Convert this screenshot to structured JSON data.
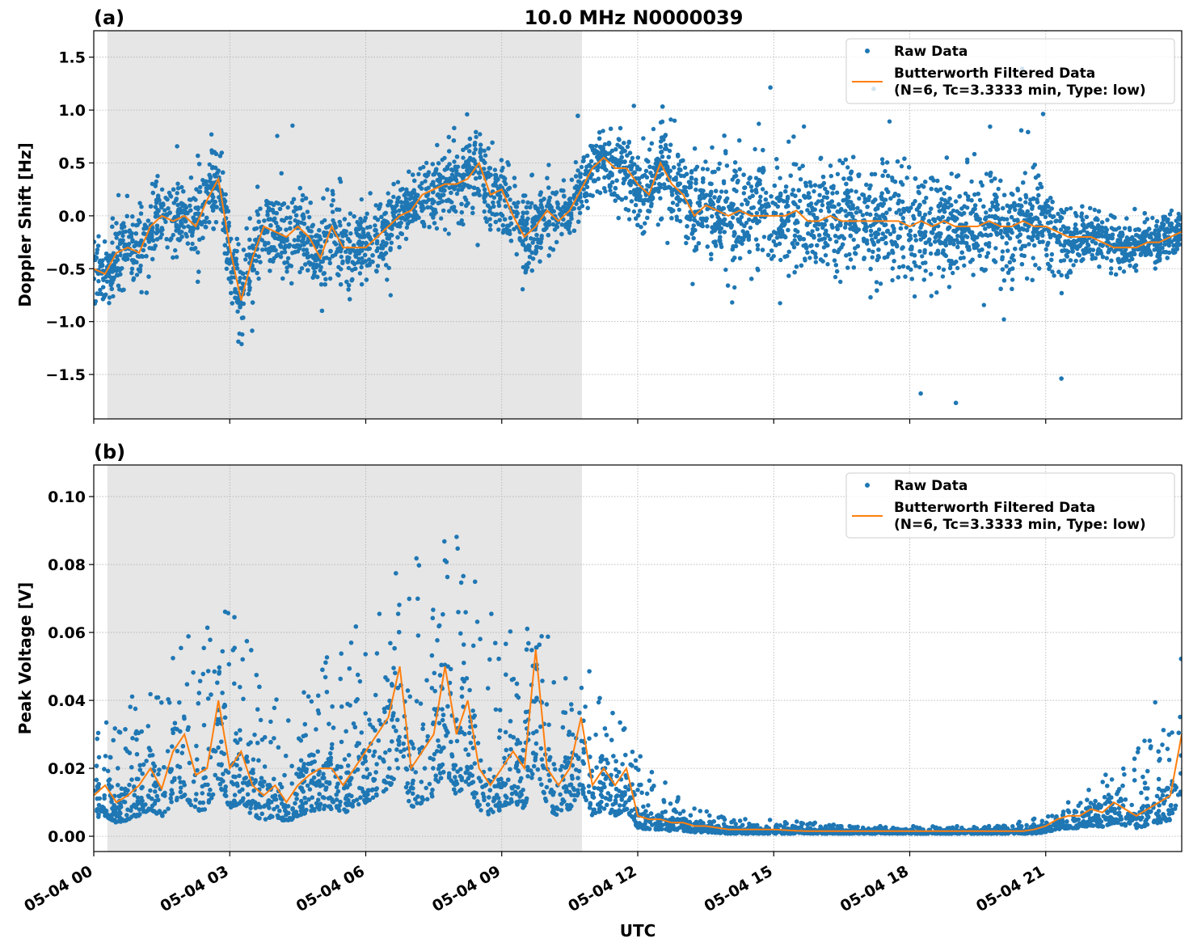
{
  "title": "10.0 MHz N0000039",
  "xlabel": "UTC",
  "x_tick_labels": [
    "05-04 00",
    "05-04 03",
    "05-04 06",
    "05-04 09",
    "05-04 12",
    "05-04 15",
    "05-04 18",
    "05-04 21"
  ],
  "colors": {
    "raw": "#1f77b4",
    "filtered": "#ff7f0e",
    "shade": "#e6e6e6",
    "grid": "#b0b0b0"
  },
  "legend": {
    "raw": "Raw Data",
    "filtered_line1": "Butterworth Filtered Data",
    "filtered_line2": "(N=6, Tc=3.3333 min, Type: low)",
    "placement": "top-right"
  },
  "chart_data": [
    {
      "type": "scatter+line",
      "panel_label": "(a)",
      "ylabel": "Doppler Shift [Hz]",
      "x_unit": "hours UTC on 05-04",
      "xlim": [
        0,
        24
      ],
      "ylim": [
        -1.92,
        1.75
      ],
      "y_ticks": [
        1.5,
        1.0,
        0.5,
        0.0,
        -0.5,
        -1.0,
        -1.5
      ],
      "y_tick_labels": [
        "1.5",
        "1.0",
        "0.5",
        "0.0",
        "−0.5",
        "−1.0",
        "−1.5"
      ],
      "grid": true,
      "shaded_span_hours": [
        0.3,
        10.77
      ],
      "filtered_step_hours": 0.25,
      "filtered": [
        -0.5,
        -0.55,
        -0.35,
        -0.3,
        -0.35,
        -0.1,
        0.0,
        -0.05,
        0.0,
        -0.1,
        0.15,
        0.35,
        -0.3,
        -0.8,
        -0.4,
        -0.1,
        -0.15,
        -0.2,
        -0.1,
        -0.2,
        -0.4,
        -0.1,
        -0.3,
        -0.3,
        -0.3,
        -0.2,
        -0.1,
        0.0,
        0.05,
        0.2,
        0.25,
        0.3,
        0.3,
        0.35,
        0.5,
        0.2,
        0.25,
        0.0,
        -0.2,
        -0.1,
        0.05,
        -0.05,
        0.05,
        0.25,
        0.45,
        0.55,
        0.45,
        0.45,
        0.3,
        0.2,
        0.5,
        0.3,
        0.2,
        0.0,
        0.1,
        0.05,
        0.0,
        0.05,
        0.0,
        0.0,
        0.0,
        0.0,
        0.05,
        -0.05,
        -0.05,
        0.0,
        -0.05,
        -0.05,
        -0.05,
        -0.05,
        -0.05,
        -0.05,
        -0.1,
        -0.05,
        -0.1,
        -0.05,
        -0.1,
        -0.1,
        -0.1,
        -0.05,
        -0.1,
        -0.1,
        -0.05,
        -0.1,
        -0.1,
        -0.15,
        -0.2,
        -0.2,
        -0.2,
        -0.25,
        -0.3,
        -0.3,
        -0.3,
        -0.25,
        -0.25,
        -0.2,
        -0.15
      ],
      "raw_spread_step_hours": 1,
      "raw_spread": [
        0.3,
        0.3,
        0.3,
        0.35,
        0.35,
        0.35,
        0.3,
        0.25,
        0.35,
        0.35,
        0.25,
        0.25,
        0.35,
        0.4,
        0.45,
        0.45,
        0.45,
        0.45,
        0.45,
        0.45,
        0.45,
        0.4,
        0.2,
        0.2,
        0.2
      ]
    },
    {
      "type": "scatter+line",
      "panel_label": "(b)",
      "ylabel": "Peak Voltage [V]",
      "x_unit": "hours UTC on 05-04",
      "xlim": [
        0,
        24
      ],
      "ylim": [
        -0.0045,
        0.1093
      ],
      "y_ticks": [
        0.0,
        0.02,
        0.04,
        0.06,
        0.08,
        0.1
      ],
      "y_tick_labels": [
        "0.00",
        "0.02",
        "0.04",
        "0.06",
        "0.08",
        "0.10"
      ],
      "grid": true,
      "shaded_span_hours": [
        0.3,
        10.77
      ],
      "filtered_step_hours": 0.25,
      "filtered": [
        0.012,
        0.015,
        0.01,
        0.012,
        0.015,
        0.02,
        0.014,
        0.025,
        0.03,
        0.018,
        0.02,
        0.04,
        0.02,
        0.025,
        0.015,
        0.012,
        0.015,
        0.01,
        0.015,
        0.018,
        0.02,
        0.02,
        0.015,
        0.02,
        0.025,
        0.03,
        0.035,
        0.05,
        0.02,
        0.025,
        0.03,
        0.05,
        0.03,
        0.04,
        0.02,
        0.015,
        0.02,
        0.025,
        0.02,
        0.055,
        0.02,
        0.015,
        0.02,
        0.035,
        0.015,
        0.02,
        0.015,
        0.02,
        0.006,
        0.005,
        0.005,
        0.004,
        0.004,
        0.003,
        0.003,
        0.0025,
        0.002,
        0.002,
        0.002,
        0.002,
        0.002,
        0.0018,
        0.0016,
        0.0015,
        0.0015,
        0.0015,
        0.0015,
        0.0015,
        0.0015,
        0.0015,
        0.0015,
        0.0015,
        0.0015,
        0.0015,
        0.0015,
        0.0015,
        0.0015,
        0.0015,
        0.0015,
        0.0015,
        0.0015,
        0.0015,
        0.0015,
        0.002,
        0.003,
        0.005,
        0.006,
        0.006,
        0.008,
        0.007,
        0.01,
        0.008,
        0.006,
        0.008,
        0.01,
        0.012,
        0.03
      ],
      "raw_upper_step_hours": 1,
      "raw_upper": [
        0.03,
        0.045,
        0.06,
        0.07,
        0.04,
        0.05,
        0.07,
        0.085,
        0.09,
        0.06,
        0.065,
        0.05,
        0.025,
        0.01,
        0.006,
        0.005,
        0.004,
        0.003,
        0.003,
        0.003,
        0.003,
        0.006,
        0.015,
        0.025,
        0.06
      ]
    }
  ]
}
